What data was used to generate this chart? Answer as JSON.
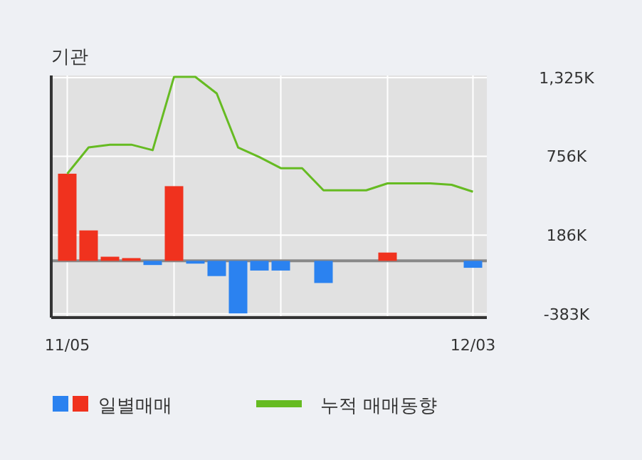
{
  "chart_data": {
    "type": "bar",
    "title": "기관",
    "categories": [
      "11/05",
      null,
      null,
      null,
      null,
      null,
      null,
      null,
      null,
      null,
      null,
      null,
      null,
      null,
      null,
      null,
      null,
      null,
      null,
      "12/03"
    ],
    "series": [
      {
        "name": "일별매매",
        "colors": [
          "#f0321e",
          "#f0321e",
          "#f0321e",
          "#f0321e",
          "#2b82f0",
          "#f0321e",
          "#2b82f0",
          "#2b82f0",
          "#2b82f0",
          "#2b82f0",
          "#2b82f0",
          "#2b82f0",
          "#2b82f0",
          "#2b82f0",
          "#2b82f0",
          "#f0321e",
          "#2b82f0",
          "#2b82f0",
          "#2b82f0",
          "#2b82f0"
        ],
        "values": [
          630,
          220,
          30,
          20,
          -30,
          540,
          -20,
          -110,
          -380,
          -70,
          -70,
          0,
          -160,
          0,
          0,
          60,
          0,
          0,
          0,
          -50
        ]
      },
      {
        "name": "누적 매매동향",
        "type": "line",
        "color": "#66bb22",
        "values": [
          630,
          820,
          840,
          840,
          800,
          1330,
          1330,
          1210,
          820,
          750,
          670,
          670,
          510,
          510,
          510,
          560,
          560,
          560,
          550,
          500
        ]
      }
    ],
    "ylim": [
      -410,
      1340
    ],
    "yticks": [
      {
        "value": -383,
        "label": "-383K"
      },
      {
        "value": 186,
        "label": "186K"
      },
      {
        "value": 756,
        "label": "756K"
      },
      {
        "value": 1325,
        "label": "1,325K"
      }
    ],
    "grid": true,
    "legend": "bottom",
    "marker": "none",
    "line_style": "solid"
  }
}
